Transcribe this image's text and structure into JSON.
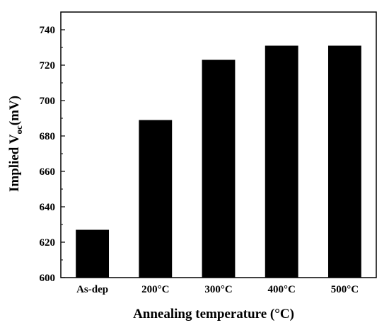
{
  "chart_data": {
    "type": "bar",
    "categories": [
      "As-dep",
      "200°C",
      "300°C",
      "400°C",
      "500°C"
    ],
    "values": [
      627,
      689,
      723,
      731,
      731
    ],
    "xlabel": "Annealing temperature (°C)",
    "ylabel_parts": {
      "main": "Implied V",
      "subscript": "oc",
      "unit": "(mV)"
    },
    "ylim": [
      600,
      750
    ],
    "yticks": [
      600,
      620,
      640,
      660,
      680,
      700,
      720,
      740
    ],
    "grid": false,
    "legend": "none",
    "bar_color": "#000000"
  }
}
